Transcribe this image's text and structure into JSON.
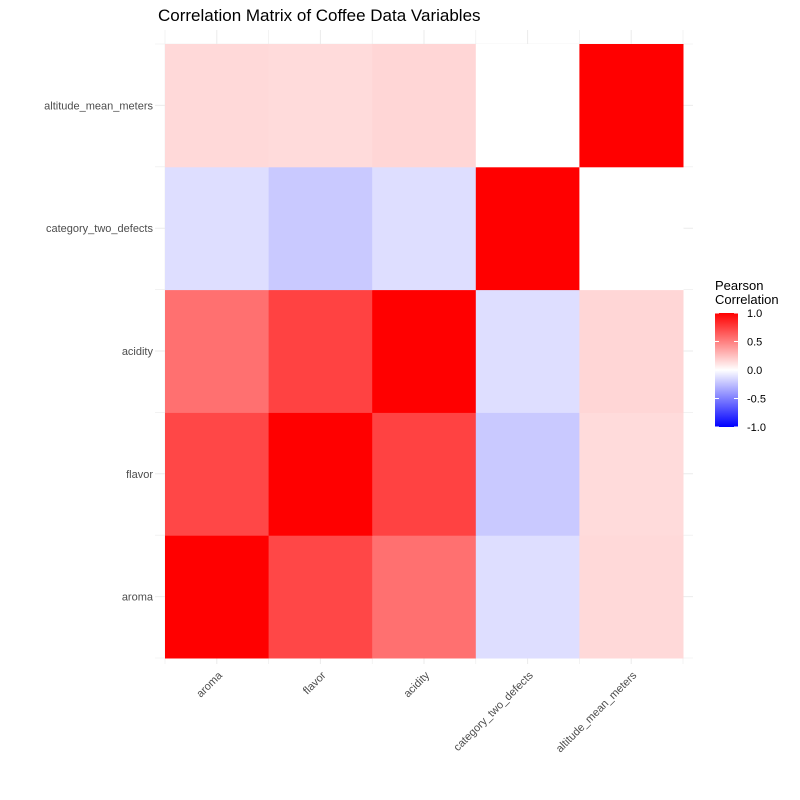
{
  "chart_data": {
    "type": "heatmap",
    "title": "Correlation Matrix of Coffee Data Variables",
    "xlabel": "",
    "ylabel": "",
    "x_categories": [
      "aroma",
      "flavor",
      "acidity",
      "category_two_defects",
      "altitude_mean_meters"
    ],
    "y_categories": [
      "aroma",
      "flavor",
      "acidity",
      "category_two_defects",
      "altitude_mean_meters"
    ],
    "values": [
      [
        1.0,
        0.72,
        0.56,
        -0.13,
        0.15
      ],
      [
        0.72,
        1.0,
        0.74,
        -0.21,
        0.14
      ],
      [
        0.56,
        0.74,
        1.0,
        -0.13,
        0.16
      ],
      [
        -0.13,
        -0.21,
        -0.13,
        1.0,
        0.0
      ],
      [
        0.15,
        0.14,
        0.16,
        0.0,
        1.0
      ]
    ],
    "color_scale": {
      "low_color": "#0000ff",
      "mid_color": "#ffffff",
      "high_color": "#ff0000",
      "midpoint": 0,
      "limits": [
        -1,
        1
      ]
    },
    "legend": {
      "title_line1": "Pearson",
      "title_line2": "Correlation",
      "ticks": [
        "1.0",
        "0.5",
        "0.0",
        "-0.5",
        "-1.0"
      ],
      "tick_values": [
        1.0,
        0.5,
        0.0,
        -0.5,
        -1.0
      ],
      "placement": "right"
    },
    "grid": true,
    "grid_color": "#ebebeb",
    "axis_text_color": "#4d4d4d"
  }
}
